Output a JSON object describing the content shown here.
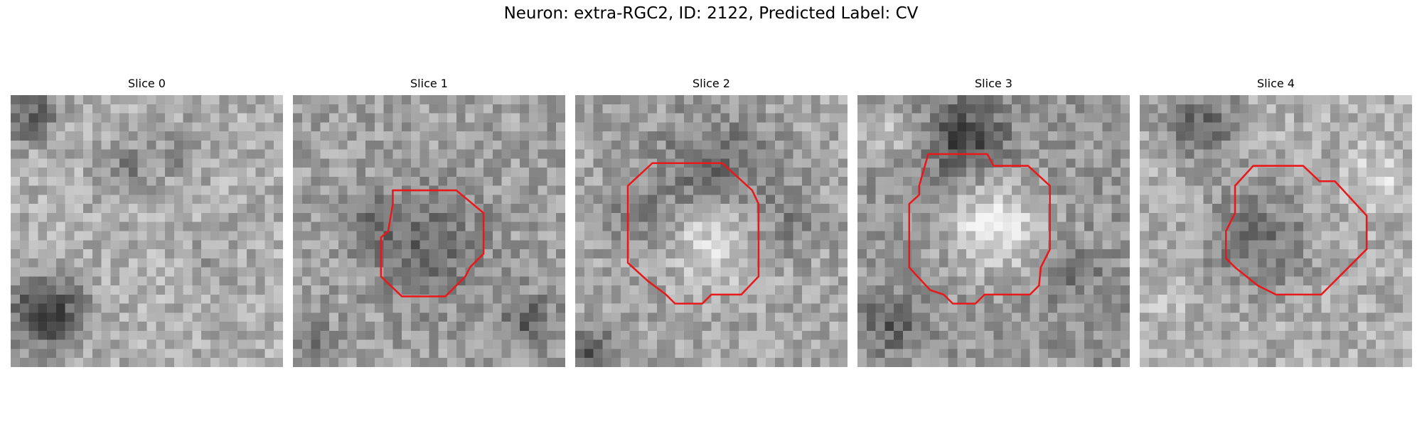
{
  "figure": {
    "title": "Neuron: extra-RGC2, ID: 2122, Predicted Label: CV"
  },
  "contour_color": "#e8191b",
  "colormap": "gray",
  "panels": [
    {
      "title": "Slice 0",
      "has_contour": false,
      "center": [
        0.5,
        0.5
      ],
      "radius": 0
    },
    {
      "title": "Slice 1",
      "has_contour": true
    },
    {
      "title": "Slice 2",
      "has_contour": true
    },
    {
      "title": "Slice 3",
      "has_contour": true
    },
    {
      "title": "Slice 4",
      "has_contour": true
    }
  ]
}
